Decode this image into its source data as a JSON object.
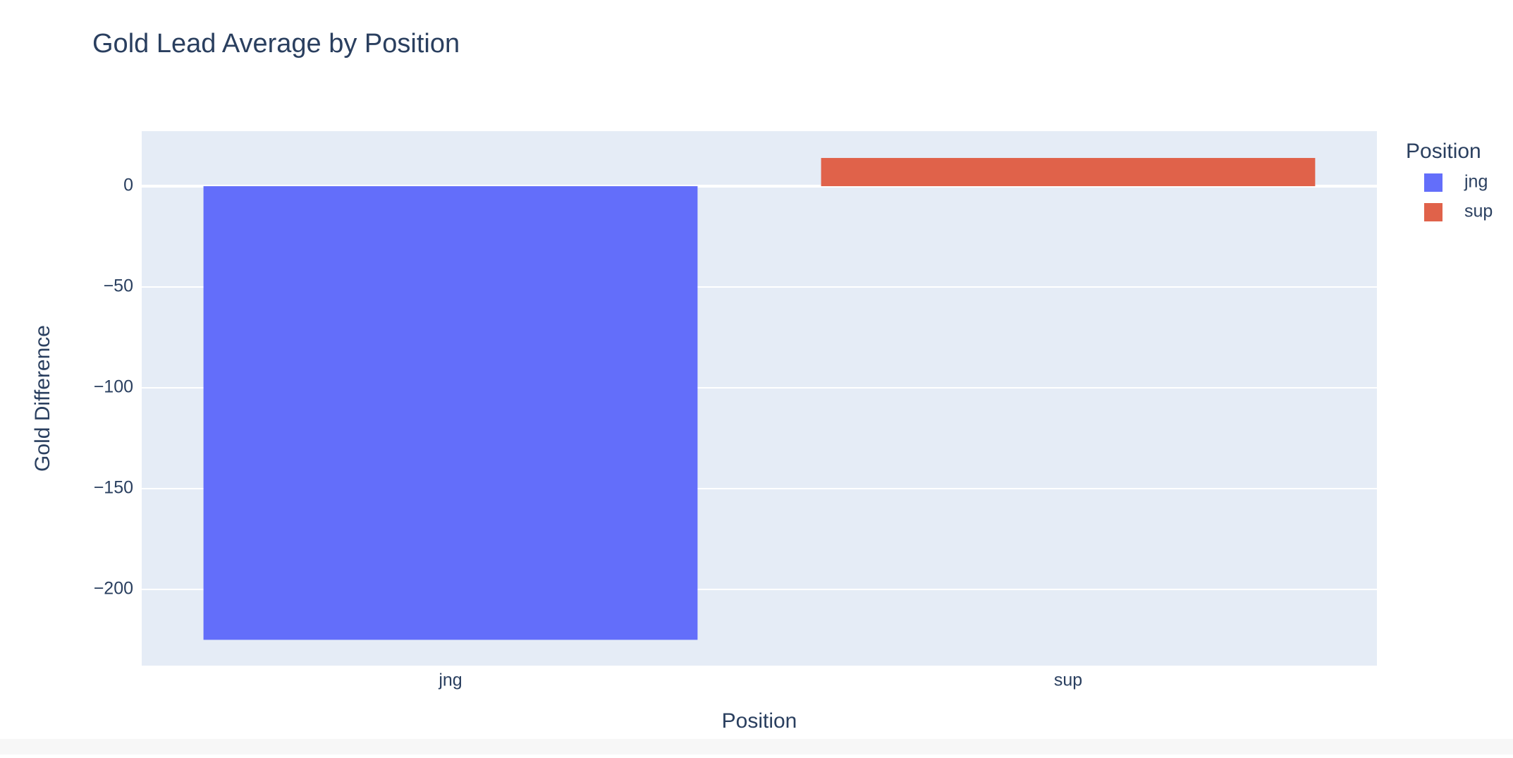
{
  "chart_data": {
    "type": "bar",
    "title": "Gold Lead Average by Position",
    "x_label": "Position",
    "y_label": "Gold Difference",
    "categories": [
      "jng",
      "sup"
    ],
    "values": [
      -225,
      14
    ],
    "colors": [
      "#636efa",
      "#e0624a"
    ],
    "legend_title": "Position",
    "legend": "right",
    "ylim": [
      -237.8,
      27.3
    ],
    "yticks": [
      0,
      {
        "value": -50,
        "label": "−50"
      },
      {
        "value": -100,
        "label": "−100"
      },
      {
        "value": -150,
        "label": "−150"
      },
      {
        "value": -200,
        "label": "−200"
      }
    ],
    "grid": true
  }
}
